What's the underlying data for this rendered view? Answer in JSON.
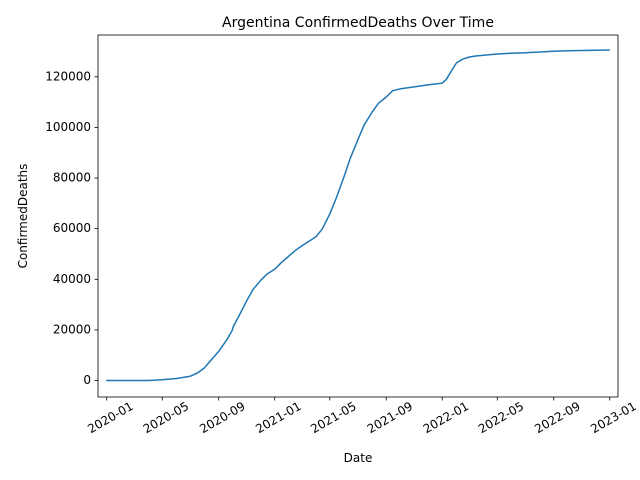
{
  "chart_data": {
    "type": "line",
    "title": "Argentina  ConfirmedDeaths Over Time",
    "xlabel": "Date",
    "ylabel": "ConfirmedDeaths",
    "x_axis_type": "date",
    "xlim": [
      "2019-12-13",
      "2023-01-19"
    ],
    "ylim": [
      -6500,
      136500
    ],
    "grid": false,
    "legend": "none",
    "line_color": "#1f77b4",
    "x_ticks": [
      "2020-01-01",
      "2020-05-01",
      "2020-09-01",
      "2021-01-01",
      "2021-05-01",
      "2021-09-01",
      "2022-01-01",
      "2022-05-01",
      "2022-09-01",
      "2023-01-01"
    ],
    "x_tick_labels": [
      "2020-01",
      "2020-05",
      "2020-09",
      "2021-01",
      "2021-05",
      "2021-09",
      "2022-01",
      "2022-05",
      "2022-09",
      "2023-01"
    ],
    "y_ticks": [
      0,
      20000,
      40000,
      60000,
      80000,
      100000,
      120000
    ],
    "y_tick_labels": [
      "0",
      "20000",
      "40000",
      "60000",
      "80000",
      "100000",
      "120000"
    ],
    "series": [
      {
        "x": [
          "2020-01-01",
          "2020-04-01",
          "2020-05-01",
          "2020-06-01",
          "2020-07-01",
          "2020-07-15",
          "2020-08-01",
          "2020-08-15",
          "2020-09-01",
          "2020-09-20",
          "2020-10-01",
          "2020-10-02",
          "2020-10-15",
          "2020-11-01",
          "2020-11-15",
          "2020-12-01",
          "2020-12-15",
          "2021-01-01",
          "2021-01-15",
          "2021-02-01",
          "2021-02-15",
          "2021-03-01",
          "2021-04-01",
          "2021-04-15",
          "2021-05-01",
          "2021-05-15",
          "2021-06-01",
          "2021-06-15",
          "2021-07-01",
          "2021-07-15",
          "2021-08-01",
          "2021-08-15",
          "2021-09-01",
          "2021-09-15",
          "2021-10-01",
          "2021-11-01",
          "2021-12-01",
          "2022-01-01",
          "2022-01-10",
          "2022-01-20",
          "2022-02-01",
          "2022-02-15",
          "2022-03-01",
          "2022-03-15",
          "2022-04-01",
          "2022-05-01",
          "2022-06-01",
          "2022-07-01",
          "2022-08-01",
          "2022-09-01",
          "2022-10-01",
          "2022-11-01",
          "2022-12-01",
          "2022-12-31"
        ],
        "y": [
          0,
          0,
          300,
          800,
          1700,
          2800,
          5000,
          8000,
          11500,
          16500,
          20000,
          21000,
          25500,
          31500,
          36000,
          39500,
          42000,
          44000,
          46500,
          49200,
          51400,
          53200,
          56800,
          60000,
          65800,
          72000,
          80500,
          88000,
          95000,
          101000,
          106000,
          109500,
          112000,
          114500,
          115200,
          116000,
          116800,
          117500,
          119000,
          122000,
          125500,
          127000,
          127800,
          128200,
          128500,
          129000,
          129300,
          129500,
          129800,
          130100,
          130300,
          130400,
          130500,
          130600
        ]
      }
    ]
  }
}
